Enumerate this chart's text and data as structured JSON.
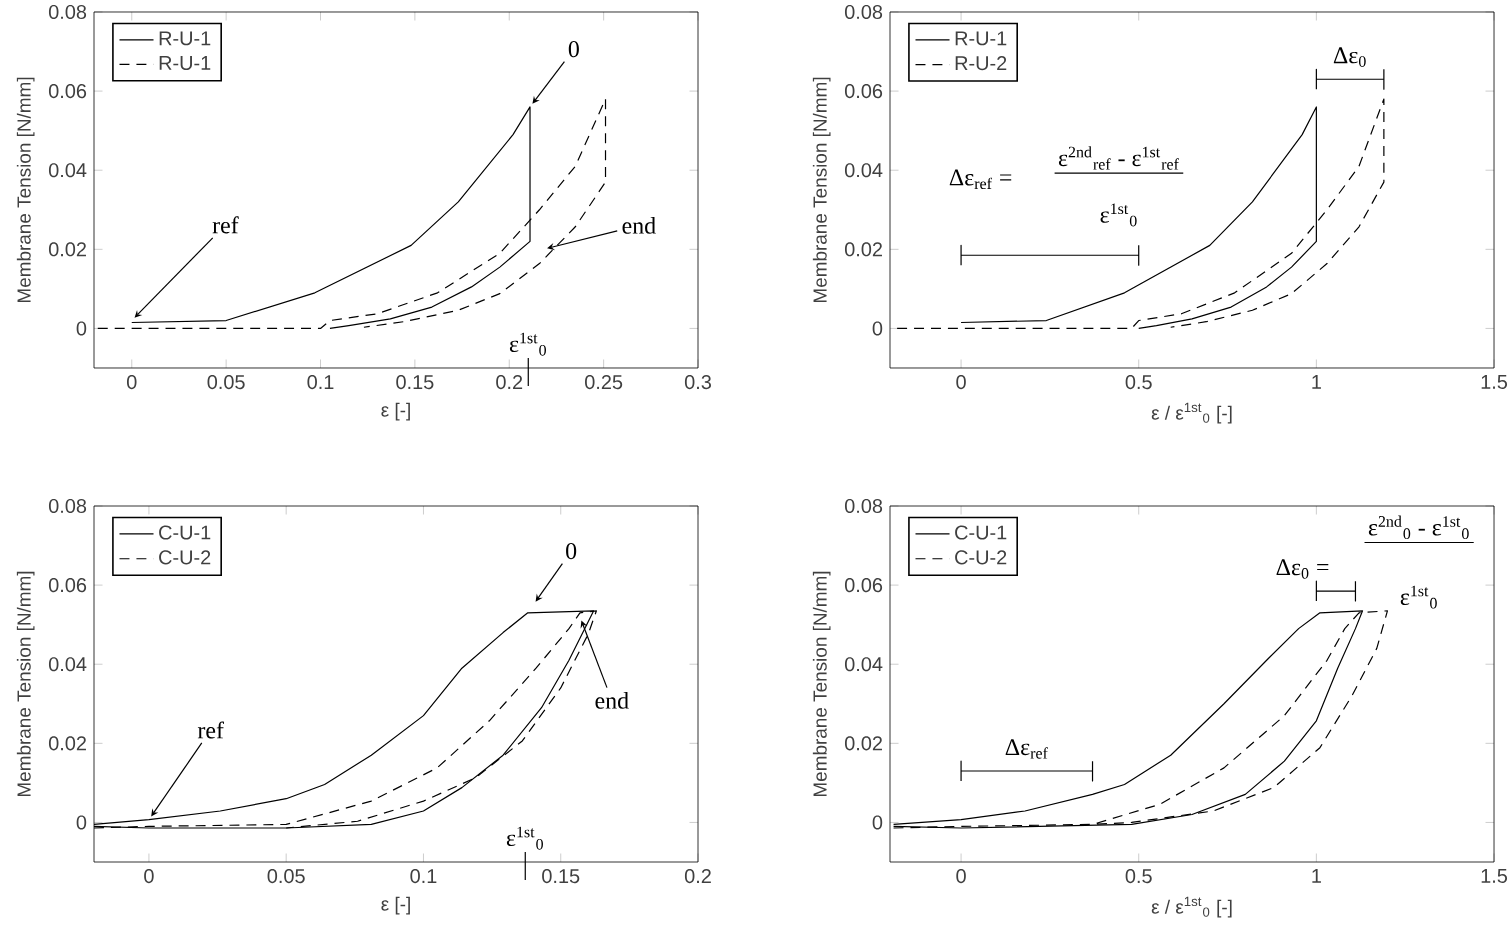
{
  "chart_data": [
    {
      "type": "line",
      "xlabel": "ε [-]",
      "ylabel": "Membrane Tension [N/mm]",
      "xlim": [
        -0.02,
        0.3
      ],
      "ylim": [
        -0.01,
        0.08
      ],
      "xticks": [
        0,
        0.05,
        0.1,
        0.15,
        0.2,
        0.25,
        0.3
      ],
      "yticks": [
        0,
        0.02,
        0.04,
        0.06,
        0.08
      ],
      "legend": "top left",
      "marker": "none",
      "series": [
        {
          "name": "R-U-1",
          "color": "#000000",
          "line_style": "solid",
          "x": [
            0,
            0.05,
            0.097,
            0.148,
            0.173,
            0.202,
            0.211,
            0.211,
            0.195,
            0.18,
            0.159,
            0.137,
            0.115,
            0.105
          ],
          "values": [
            0.0015,
            0.002,
            0.009,
            0.021,
            0.032,
            0.049,
            0.056,
            0.022,
            0.0155,
            0.0105,
            0.0054,
            0.0024,
            0.0007,
            0
          ]
        },
        {
          "name": "R-U-1",
          "color": "#000000",
          "line_style": "dashed",
          "x": [
            -0.018,
            0.1,
            0.105,
            0.13,
            0.162,
            0.195,
            0.216,
            0.235,
            0.251,
            0.251,
            0.235,
            0.216,
            0.195,
            0.173,
            0.144,
            0.123
          ],
          "values": [
            0,
            0,
            0.002,
            0.0037,
            0.009,
            0.019,
            0.03,
            0.041,
            0.058,
            0.037,
            0.0257,
            0.0164,
            0.0088,
            0.0046,
            0.0017,
            0.0003
          ]
        }
      ],
      "annotations": [
        {
          "text": "0",
          "x": 0.211,
          "y": 0.056
        },
        {
          "text": "ref",
          "x": 0,
          "y": 0.002
        },
        {
          "text": "end",
          "x": 0.218,
          "y": 0.02
        },
        "ε$^{1st}$$_{0}$"
      ]
    },
    {
      "type": "line",
      "xlabel": "ε / ε$^{1st}$$_{0}$ [-]",
      "ylabel": "Membrane Tension [N/mm]",
      "xlim": [
        -0.2,
        1.5
      ],
      "ylim": [
        -0.01,
        0.08
      ],
      "xticks": [
        0,
        0.5,
        1,
        1.5
      ],
      "yticks": [
        0,
        0.02,
        0.04,
        0.06,
        0.08
      ],
      "legend": "top left",
      "marker": "none",
      "series": [
        {
          "name": "R-U-1",
          "color": "#000000",
          "line_style": "solid",
          "x": [
            0,
            0.24,
            0.46,
            0.7,
            0.82,
            0.96,
            1.0,
            1.0,
            0.93,
            0.86,
            0.76,
            0.65,
            0.55,
            0.5
          ],
          "values": [
            0.0015,
            0.002,
            0.009,
            0.021,
            0.032,
            0.049,
            0.056,
            0.022,
            0.0155,
            0.0105,
            0.0054,
            0.0024,
            0.0007,
            0
          ]
        },
        {
          "name": "R-U-2",
          "color": "#000000",
          "line_style": "dashed",
          "x": [
            -0.18,
            0.48,
            0.5,
            0.62,
            0.77,
            0.93,
            1.03,
            1.12,
            1.19,
            1.19,
            1.12,
            1.03,
            0.93,
            0.82,
            0.69,
            0.59
          ],
          "values": [
            0,
            0,
            0.002,
            0.0037,
            0.009,
            0.019,
            0.03,
            0.041,
            0.058,
            0.037,
            0.0257,
            0.0164,
            0.0088,
            0.0046,
            0.0017,
            0.0003
          ]
        },
        {
          "color": "#000000",
          "line_style": "solid",
          "x": [
            1,
            1,
            1,
            1.19,
            1.19,
            1.19
          ],
          "values": [
            0.0605,
            0.0655,
            0.063,
            0.063,
            0.0605,
            0.0655
          ]
        },
        {
          "color": "#000000",
          "line_style": "solid",
          "x": [
            0,
            0,
            0,
            0.5,
            0.5,
            0.5
          ],
          "values": [
            0.016,
            0.021,
            0.0185,
            0.0185,
            0.016,
            0.021
          ]
        }
      ],
      "annotations": [
        {
          "text": "Δε$_{0}$",
          "x": 1.095,
          "y": 0.063
        },
        "Δε$_{ref}$ =",
        "ε$^{2nd}$$_{ref}$ - ε$^{1st}$$_{ref}$",
        "ε$^{1st}$$_{0}$"
      ]
    },
    {
      "type": "line",
      "xlabel": "ε [-]",
      "ylabel": "Membrane Tension [N/mm]",
      "xlim": [
        -0.02,
        0.2
      ],
      "ylim": [
        -0.01,
        0.08
      ],
      "xticks": [
        0,
        0.05,
        0.1,
        0.15,
        0.2
      ],
      "yticks": [
        0,
        0.02,
        0.04,
        0.06,
        0.08
      ],
      "legend": "top left",
      "marker": "none",
      "series": [
        {
          "name": "C-U-1",
          "color": "#000000",
          "line_style": "solid",
          "x": [
            -0.02,
            0,
            0.026,
            0.05,
            0.064,
            0.081,
            0.1,
            0.114,
            0.129,
            0.138,
            0.162,
            0.153,
            0.143,
            0.129,
            0.114,
            0.1,
            0.081,
            0.05,
            0,
            -0.02
          ],
          "values": [
            -0.0005,
            0.0007,
            0.0029,
            0.006,
            0.0096,
            0.017,
            0.027,
            0.039,
            0.048,
            0.053,
            0.0535,
            0.041,
            0.029,
            0.017,
            0.0088,
            0.0029,
            -0.0005,
            -0.0014,
            -0.0014,
            -0.001
          ]
        },
        {
          "name": "C-U-2",
          "color": "#000000",
          "line_style": "dashed",
          "x": [
            -0.02,
            0,
            0.05,
            0.081,
            0.105,
            0.124,
            0.141,
            0.153,
            0.157,
            0.163,
            0.16,
            0.15,
            0.136,
            0.119,
            0.1,
            0.076,
            0.05
          ],
          "values": [
            -0.0014,
            -0.001,
            -0.0005,
            0.0054,
            0.0138,
            0.0257,
            0.039,
            0.049,
            0.053,
            0.0535,
            0.0476,
            0.034,
            0.0206,
            0.0113,
            0.0054,
            0.0003,
            -0.0014
          ]
        }
      ],
      "annotations": [
        {
          "text": "0",
          "x": 0.14,
          "y": 0.055
        },
        {
          "text": "ref",
          "x": 0,
          "y": 0.0007
        },
        {
          "text": "end",
          "x": 0.157,
          "y": 0.052
        },
        "ε$^{1st}$$_{0}$"
      ]
    },
    {
      "type": "line",
      "xlabel": "ε / ε$^{1st}$$_{0}$ [-]",
      "ylabel": "Membrane Tension [N/mm]",
      "xlim": [
        -0.2,
        1.5
      ],
      "ylim": [
        -0.01,
        0.08
      ],
      "xticks": [
        0,
        0.5,
        1,
        1.5
      ],
      "yticks": [
        0,
        0.02,
        0.04,
        0.06,
        0.08
      ],
      "legend": "top left",
      "marker": "none",
      "series": [
        {
          "name": "C-U-1",
          "color": "#000000",
          "line_style": "solid",
          "x": [
            -0.19,
            0,
            0.18,
            0.37,
            0.46,
            0.59,
            0.74,
            0.86,
            0.95,
            1.01,
            1.13,
            1.11,
            1.06,
            1.0,
            0.91,
            0.8,
            0.65,
            0.48,
            0,
            -0.19
          ],
          "values": [
            -0.0005,
            0.0007,
            0.0029,
            0.0071,
            0.0096,
            0.017,
            0.03,
            0.041,
            0.049,
            0.053,
            0.0535,
            0.049,
            0.039,
            0.0257,
            0.0155,
            0.0071,
            0.002,
            -0.0005,
            -0.0014,
            -0.001
          ]
        },
        {
          "name": "C-U-2",
          "color": "#000000",
          "line_style": "dashed",
          "x": [
            -0.19,
            0,
            0.37,
            0.56,
            0.74,
            0.91,
            1.03,
            1.08,
            1.12,
            1.2,
            1.17,
            1.1,
            1.01,
            0.88,
            0.71,
            0.48,
            0.37
          ],
          "values": [
            -0.0014,
            -0.001,
            -0.0005,
            0.0046,
            0.0138,
            0.027,
            0.041,
            0.049,
            0.053,
            0.0535,
            0.044,
            0.032,
            0.0189,
            0.0088,
            0.0029,
            0,
            -0.0005
          ]
        },
        {
          "color": "#000000",
          "line_style": "solid",
          "x": [
            1,
            1,
            1,
            1.11,
            1.11,
            1.11
          ],
          "values": [
            0.056,
            0.061,
            0.0585,
            0.0585,
            0.056,
            0.061
          ]
        },
        {
          "color": "#000000",
          "line_style": "solid",
          "x": [
            0,
            0,
            0,
            0.37,
            0.37,
            0.37
          ],
          "values": [
            0.0105,
            0.0155,
            0.013,
            0.013,
            0.0105,
            0.0155
          ]
        }
      ],
      "annotations": [
        "Δε$_{0}$ =",
        "ε$^{2nd}$$_{0}$ - ε$^{1st}$$_{0}$",
        "ε$^{1st}$$_{0}$",
        {
          "text": "Δε$_{ref}$",
          "x": 0.185,
          "y": 0.013
        }
      ]
    }
  ]
}
